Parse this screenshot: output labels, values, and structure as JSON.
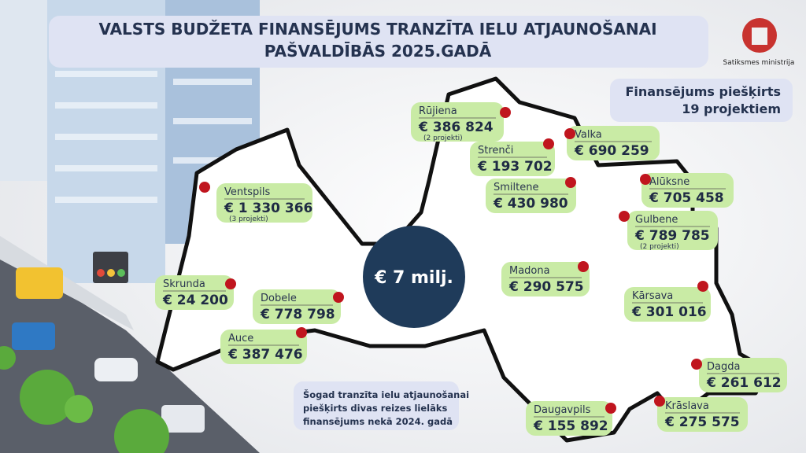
{
  "header": {
    "title_lines": [
      "VALSTS BUDŽETA FINANSĒJUMS TRANZĪTA IELU ATJAUNOŠANAI",
      "PAŠVALDĪBĀS 2025.GADĀ"
    ],
    "logo_text": "Satiksmes ministrija"
  },
  "summary": {
    "lines": [
      "Finansējums piešķirts",
      "19 projektiem"
    ]
  },
  "center": {
    "text": "€ 7 milj."
  },
  "note": {
    "lines": [
      "Šogad tranzīta ielu atjaunošanai",
      "piešķirts divas reizes lielāks",
      "finansējums nekā 2024. gadā"
    ]
  },
  "municipalities": [
    {
      "name": "Rūjiena",
      "amount": "€ 386 824",
      "note": "(2 projekti)"
    },
    {
      "name": "Strenči",
      "amount": "€ 193 702"
    },
    {
      "name": "Valka",
      "amount": "€ 690 259"
    },
    {
      "name": "Smiltene",
      "amount": "€ 430 980"
    },
    {
      "name": "Alūksne",
      "amount": "€ 705 458"
    },
    {
      "name": "Ventspils",
      "amount": "€ 1 330 366",
      "note": "(3 projekti)"
    },
    {
      "name": "Gulbene",
      "amount": "€ 789 785",
      "note": "(2 projekti)"
    },
    {
      "name": "Skrunda",
      "amount": "€ 24 200"
    },
    {
      "name": "Dobele",
      "amount": "€ 778 798"
    },
    {
      "name": "Madona",
      "amount": "€ 290 575"
    },
    {
      "name": "Kārsava",
      "amount": "€ 301 016"
    },
    {
      "name": "Auce",
      "amount": "€ 387 476"
    },
    {
      "name": "Dagda",
      "amount": "€ 261 612"
    },
    {
      "name": "Daugavpils",
      "amount": "€ 155 892"
    },
    {
      "name": "Krāslava",
      "amount": "€ 275 575"
    }
  ]
}
